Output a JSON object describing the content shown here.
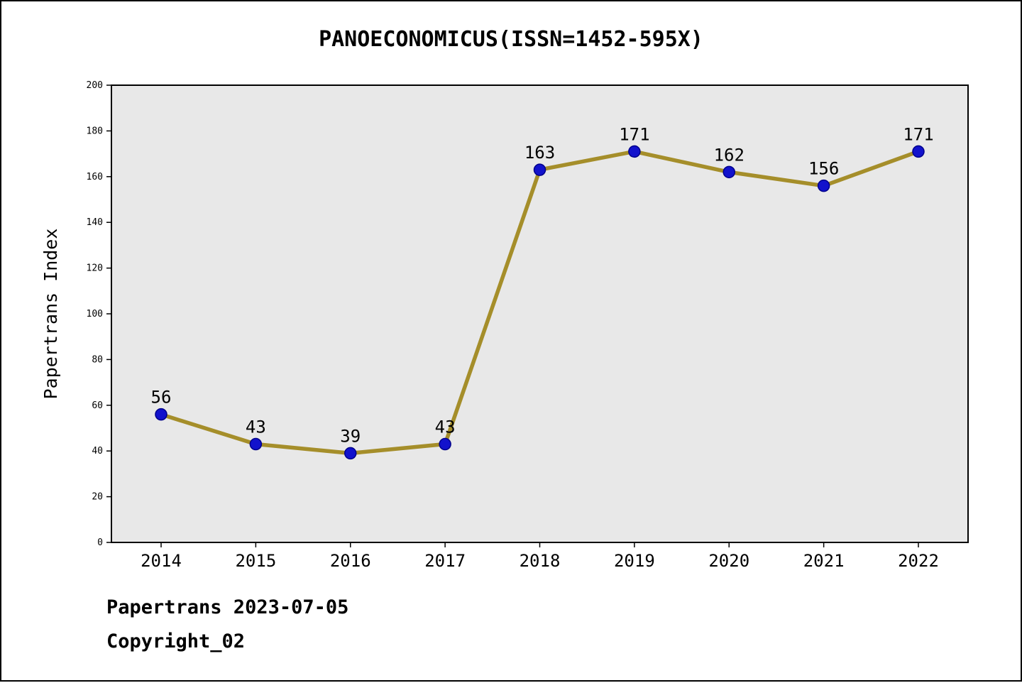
{
  "chart_data": {
    "type": "line",
    "title": "PANOECONOMICUS(ISSN=1452-595X)",
    "ylabel": "Papertrans Index",
    "xlabel": "",
    "categories": [
      "2014",
      "2015",
      "2016",
      "2017",
      "2018",
      "2019",
      "2020",
      "2021",
      "2022"
    ],
    "values": [
      56,
      43,
      39,
      43,
      163,
      171,
      162,
      156,
      171
    ],
    "ylim": [
      0,
      200
    ],
    "yticks": [
      0,
      20,
      40,
      60,
      80,
      100,
      120,
      140,
      160,
      180,
      200
    ],
    "grid": false,
    "legend": "none",
    "data_labels": true,
    "line_color": "#a58e2a",
    "marker_color": "#1212cc",
    "marker_edge_color": "#00008b",
    "plot_bg": "#e8e8e8",
    "axis_color": "#000000"
  },
  "footer": {
    "line1": "Papertrans 2023-07-05",
    "line2": "Copyright_02"
  }
}
